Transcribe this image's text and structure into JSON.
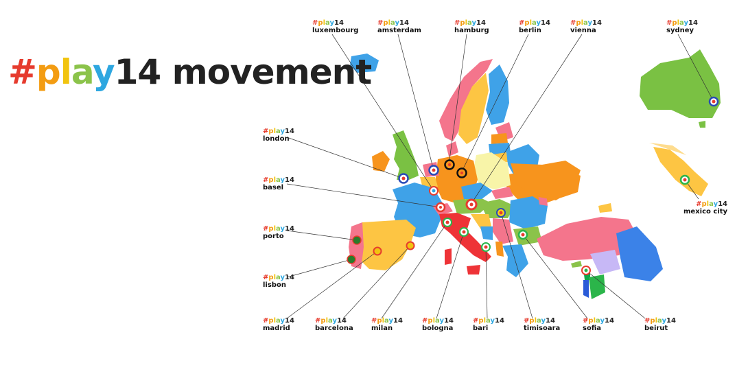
{
  "headline": {
    "hash": "#",
    "p": "p",
    "l": "l",
    "a": "a",
    "y": "y",
    "num": "14",
    "rest": " movement"
  },
  "tag": {
    "hash": "#",
    "p": "p",
    "l": "l",
    "a": "a",
    "y": "y",
    "num": "14"
  },
  "cities": {
    "luxembourg": "luxembourg",
    "amsterdam": "amsterdam",
    "hamburg": "hamburg",
    "berlin": "berlin",
    "vienna": "vienna",
    "sydney": "sydney",
    "london": "london",
    "basel": "basel",
    "porto": "porto",
    "lisbon": "lisbon",
    "madrid": "madrid",
    "barcelona": "barcelona",
    "milan": "milan",
    "bologna": "bologna",
    "bari": "bari",
    "timisoara": "timisoara",
    "sofia": "sofia",
    "beirut": "beirut",
    "mexico_city": "mexico city"
  },
  "colors": {
    "hash": "#e63b2e",
    "p": "#f39c12",
    "l": "#f1c40f",
    "a": "#8bc34a",
    "y": "#2ea7e0",
    "num": "#222222"
  }
}
